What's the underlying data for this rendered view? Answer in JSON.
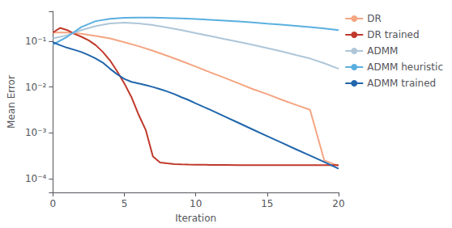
{
  "chart_data": {
    "type": "line",
    "xlabel": "Iteration",
    "ylabel": "Mean Error",
    "log": "y",
    "xlim": [
      0,
      20
    ],
    "xticks": [
      0,
      5,
      10,
      15,
      20
    ],
    "ylim": [
      5e-05,
      0.45
    ],
    "yticks": [
      {
        "value": 0.0001,
        "label": "10⁻⁴"
      },
      {
        "value": 0.001,
        "label": "10⁻³"
      },
      {
        "value": 0.01,
        "label": "10⁻²"
      },
      {
        "value": 0.1,
        "label": "10⁻¹"
      }
    ],
    "grid": false,
    "legend": "upper right",
    "series": [
      {
        "name": "DR",
        "color": "#f4a582",
        "x": [
          0,
          1,
          2,
          3,
          4,
          5,
          6,
          7,
          8,
          9,
          10,
          11,
          12,
          13,
          14,
          15,
          16,
          17,
          18,
          19,
          20
        ],
        "values": [
          0.155,
          0.155,
          0.145,
          0.13,
          0.115,
          0.095,
          0.078,
          0.062,
          0.048,
          0.037,
          0.028,
          0.021,
          0.016,
          0.012,
          0.009,
          0.007,
          0.0053,
          0.0041,
          0.0032,
          0.00025,
          0.00019
        ]
      },
      {
        "name": "DR trained",
        "color": "#c0392b",
        "x": [
          0,
          0.5,
          1,
          1.5,
          2,
          2.5,
          3,
          3.5,
          4,
          4.5,
          5,
          5.5,
          6,
          6.5,
          7,
          7.5,
          8,
          8.5,
          9,
          9.5,
          10,
          11,
          12,
          13,
          14,
          15,
          16,
          17,
          18,
          19,
          20
        ],
        "values": [
          0.155,
          0.195,
          0.175,
          0.145,
          0.125,
          0.105,
          0.082,
          0.058,
          0.038,
          0.022,
          0.012,
          0.006,
          0.0025,
          0.00115,
          0.000305,
          0.000225,
          0.000215,
          0.000208,
          0.000205,
          0.000203,
          0.000202,
          0.0002,
          0.000199,
          0.000198,
          0.000197,
          0.000197,
          0.000197,
          0.000197,
          0.000197,
          0.000197,
          0.000197
        ]
      },
      {
        "name": "ADMM",
        "color": "#aec6d8",
        "x": [
          0,
          1,
          2,
          3,
          4,
          5,
          6,
          7,
          8,
          9,
          10,
          11,
          12,
          13,
          14,
          15,
          16,
          17,
          18,
          19,
          20
        ],
        "values": [
          0.115,
          0.135,
          0.175,
          0.215,
          0.245,
          0.255,
          0.245,
          0.225,
          0.2,
          0.175,
          0.15,
          0.13,
          0.112,
          0.097,
          0.083,
          0.071,
          0.06,
          0.05,
          0.042,
          0.033,
          0.025
        ]
      },
      {
        "name": "ADMM heuristic",
        "color": "#5aafe0",
        "x": [
          0,
          1,
          2,
          3,
          4,
          5,
          6,
          7,
          8,
          9,
          10,
          11,
          12,
          13,
          14,
          15,
          16,
          17,
          18,
          19,
          20
        ],
        "values": [
          0.085,
          0.125,
          0.205,
          0.275,
          0.31,
          0.325,
          0.33,
          0.328,
          0.322,
          0.315,
          0.305,
          0.295,
          0.283,
          0.27,
          0.257,
          0.243,
          0.23,
          0.217,
          0.203,
          0.19,
          0.175
        ]
      },
      {
        "name": "ADMM trained",
        "color": "#2166ac",
        "x": [
          0,
          0.5,
          1,
          1.5,
          2,
          2.5,
          3,
          3.5,
          4,
          4.5,
          5,
          5.5,
          6,
          6.5,
          7,
          7.5,
          8,
          8.5,
          9,
          9.5,
          10,
          11,
          12,
          13,
          14,
          15,
          16,
          17,
          18,
          19,
          20
        ],
        "values": [
          0.095,
          0.082,
          0.072,
          0.065,
          0.058,
          0.05,
          0.042,
          0.034,
          0.025,
          0.019,
          0.015,
          0.013,
          0.012,
          0.011,
          0.01,
          0.009,
          0.008,
          0.007,
          0.006,
          0.0052,
          0.0044,
          0.0032,
          0.0023,
          0.00165,
          0.00118,
          0.00085,
          0.00061,
          0.00044,
          0.00032,
          0.00023,
          0.000165
        ]
      }
    ]
  }
}
